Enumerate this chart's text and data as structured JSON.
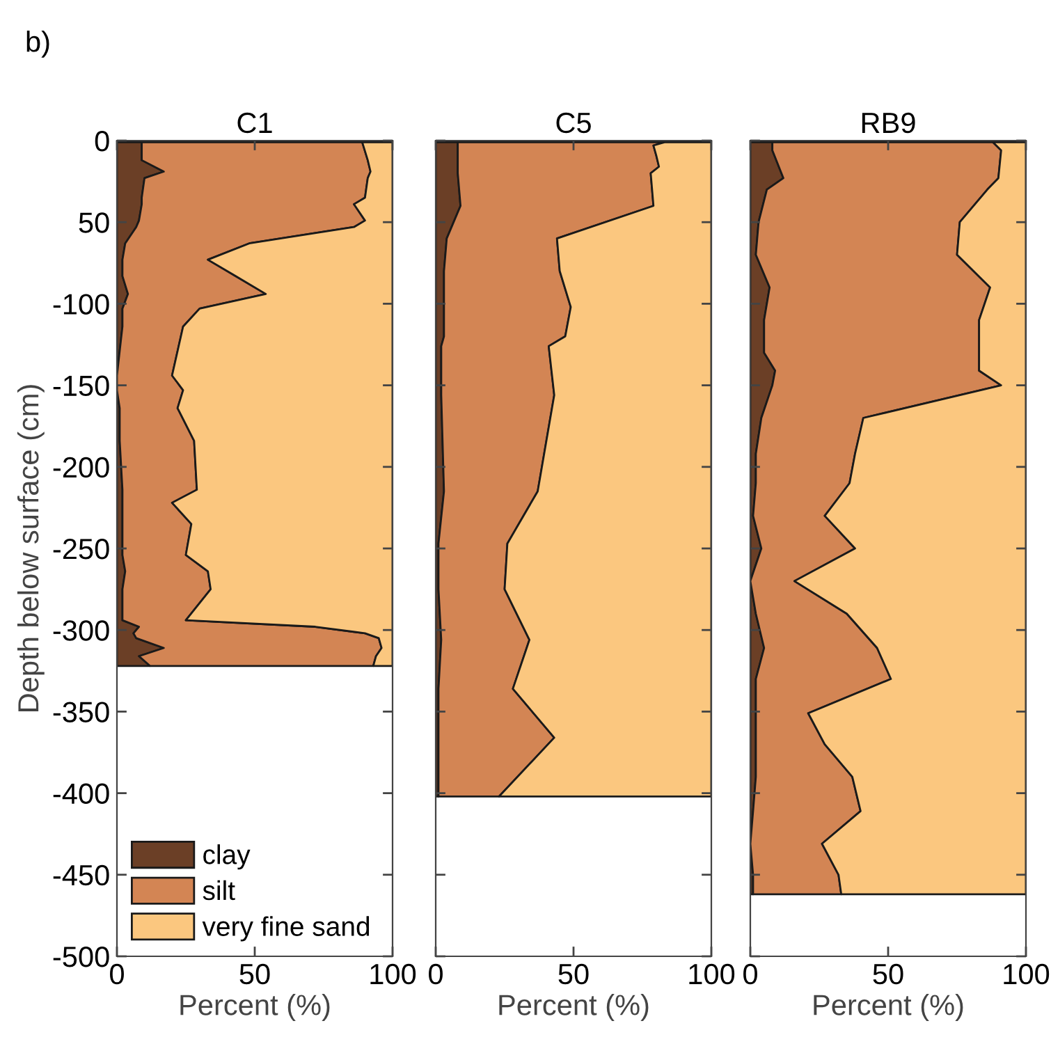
{
  "chart_data": [
    {
      "type": "area",
      "title": "C1",
      "xlabel": "Percent (%)",
      "ylabel": "Depth below surface (cm)",
      "annotations": [
        "b)"
      ],
      "stacked": true,
      "orientation": "horizontal",
      "legend": "bottom left",
      "grid": false,
      "x": [
        -1,
        -12,
        -19,
        -23,
        -35,
        -39,
        -49,
        -53,
        -63,
        -73,
        -83,
        -94,
        -103,
        -114,
        -144,
        -153,
        -164,
        -184,
        -214,
        -222,
        -235,
        -254,
        -264,
        -275,
        -294,
        -298,
        -302,
        -305,
        -311,
        -316,
        -322
      ],
      "series": [
        {
          "name": "clay",
          "color": "#6b3f26",
          "values": [
            9,
            9,
            17,
            10,
            9,
            9,
            8,
            7,
            3,
            2,
            2,
            4,
            2,
            2,
            0,
            0,
            1,
            1,
            2,
            2,
            2,
            2,
            3,
            2,
            2,
            8,
            6,
            7,
            17,
            8,
            12
          ]
        },
        {
          "name": "silt",
          "color": "#d38554",
          "values": [
            80,
            82,
            75,
            81,
            81,
            77,
            82,
            79,
            45,
            31,
            41,
            50,
            28,
            22,
            20,
            24,
            21,
            27,
            27,
            18,
            25,
            23,
            30,
            32,
            23,
            64,
            84,
            88,
            79,
            86,
            81
          ]
        },
        {
          "name": "very fine sand",
          "color": "#fbc77f",
          "values": [
            11,
            9,
            8,
            9,
            10,
            14,
            10,
            14,
            52,
            67,
            57,
            46,
            70,
            76,
            80,
            76,
            78,
            72,
            71,
            80,
            73,
            75,
            67,
            66,
            75,
            28,
            10,
            5,
            4,
            6,
            7
          ]
        }
      ],
      "xlim": [
        0,
        100
      ],
      "xticks": [
        0,
        50,
        100
      ],
      "ylim": [
        -500,
        0
      ],
      "yticks": [
        0,
        {
          "value": -50,
          "label": "50"
        },
        -100,
        -150,
        -200,
        -250,
        -300,
        -350,
        -400,
        -450,
        -500
      ]
    },
    {
      "type": "area",
      "title": "C5",
      "xlabel": "Percent (%)",
      "stacked": true,
      "orientation": "horizontal",
      "grid": false,
      "tick_labels": "x",
      "x": [
        -1,
        -3,
        -9,
        -16,
        -20,
        -40,
        -60,
        -80,
        -102,
        -120,
        -126,
        -156,
        -215,
        -247,
        -275,
        -306,
        -336,
        -366,
        -402
      ],
      "series": [
        {
          "color": "#6b3f26",
          "values": [
            8,
            8,
            8,
            8,
            8,
            9,
            4,
            3,
            3,
            3,
            2,
            2,
            3,
            1,
            1,
            2,
            1,
            1,
            1
          ]
        },
        {
          "color": "#d38554",
          "values": [
            75,
            71,
            72,
            73,
            70,
            70,
            40,
            42,
            46,
            44,
            39,
            41,
            34,
            25,
            24,
            32,
            27,
            42,
            22
          ]
        },
        {
          "color": "#fbc77f",
          "values": [
            17,
            21,
            20,
            19,
            22,
            21,
            56,
            55,
            51,
            53,
            59,
            57,
            63,
            74,
            75,
            66,
            72,
            57,
            77
          ]
        }
      ],
      "xlim": [
        0,
        100
      ],
      "xticks": [
        0,
        50,
        100
      ],
      "ylim": [
        -500,
        0
      ],
      "yticks": [
        0,
        -50,
        -100,
        -150,
        -200,
        -250,
        -300,
        -350,
        -400,
        -450,
        -500
      ]
    },
    {
      "type": "area",
      "title": "RB9",
      "xlabel": "Percent (%)",
      "stacked": true,
      "orientation": "horizontal",
      "grid": false,
      "tick_labels": "x",
      "x": [
        -1,
        -6,
        -23,
        -30,
        -50,
        -70,
        -90,
        -110,
        -130,
        -141,
        -150,
        -170,
        -192,
        -210,
        -230,
        -250,
        -270,
        -290,
        -311,
        -330,
        -351,
        -370,
        -390,
        -411,
        -431,
        -450,
        -462
      ],
      "series": [
        {
          "color": "#6b3f26",
          "values": [
            8,
            8,
            12,
            6,
            3,
            2,
            7,
            5,
            5,
            9,
            8,
            4,
            2,
            2,
            1,
            4,
            0,
            2,
            5,
            2,
            2,
            2,
            2,
            1,
            0,
            1,
            1
          ]
        },
        {
          "color": "#d38554",
          "values": [
            80,
            83,
            78,
            80,
            73,
            73,
            80,
            78,
            78,
            74,
            83,
            37,
            36,
            34,
            26,
            34,
            16,
            33,
            41,
            49,
            19,
            25,
            35,
            39,
            26,
            31,
            32
          ]
        },
        {
          "color": "#fbc77f",
          "values": [
            12,
            9,
            10,
            14,
            24,
            25,
            13,
            17,
            17,
            17,
            9,
            59,
            62,
            64,
            73,
            62,
            84,
            65,
            54,
            49,
            79,
            73,
            63,
            60,
            74,
            68,
            67
          ]
        }
      ],
      "xlim": [
        0,
        100
      ],
      "xticks": [
        0,
        50,
        100
      ],
      "ylim": [
        -500,
        0
      ],
      "yticks": [
        0,
        -50,
        -100,
        -150,
        -200,
        -250,
        -300,
        -350,
        -400,
        -450,
        -500
      ]
    }
  ]
}
